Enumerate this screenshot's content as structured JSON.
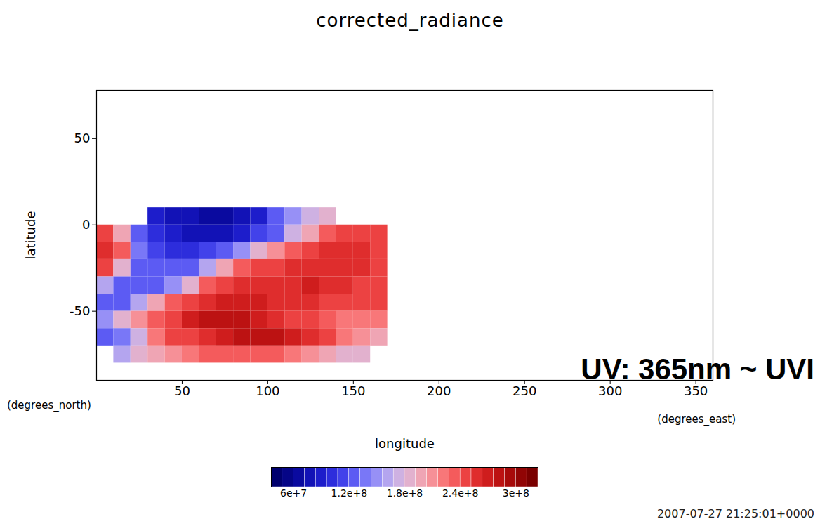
{
  "chart_data": {
    "type": "heatmap",
    "title": "corrected_radiance",
    "x_label": "longitude",
    "y_label": "latitude",
    "x_unit_label": "(degrees_east)",
    "y_unit_label": "(degrees_north)",
    "annotation": "UV: 365nm ~ UVI",
    "timestamp": "2007-07-27 21:25:01+0000",
    "xlim": [
      0,
      360
    ],
    "ylim": [
      -90,
      78
    ],
    "xticks": [
      50,
      100,
      150,
      200,
      250,
      300,
      350
    ],
    "yticks": [
      -50,
      0,
      50
    ],
    "cells": {
      "lon": [
        0,
        10,
        20,
        30,
        40,
        50,
        60,
        70,
        80,
        90,
        100,
        110,
        120,
        130,
        140,
        150,
        160
      ],
      "lat": [
        0,
        -10,
        -20,
        -30,
        -40,
        -50,
        -60,
        -70,
        -80
      ],
      "values": [
        [
          null,
          null,
          null,
          90000000.0,
          80000000.0,
          75000000.0,
          70000000.0,
          70000000.0,
          75000000.0,
          90000000.0,
          120000000.0,
          150000000.0,
          170000000.0,
          190000000.0,
          null,
          null,
          null
        ],
        [
          250000000.0,
          200000000.0,
          130000000.0,
          100000000.0,
          90000000.0,
          80000000.0,
          75000000.0,
          80000000.0,
          90000000.0,
          110000000.0,
          130000000.0,
          170000000.0,
          200000000.0,
          230000000.0,
          240000000.0,
          250000000.0,
          240000000.0
        ],
        [
          260000000.0,
          230000000.0,
          140000000.0,
          110000000.0,
          100000000.0,
          100000000.0,
          110000000.0,
          130000000.0,
          150000000.0,
          180000000.0,
          210000000.0,
          230000000.0,
          250000000.0,
          260000000.0,
          260000000.0,
          260000000.0,
          250000000.0
        ],
        [
          240000000.0,
          190000000.0,
          130000000.0,
          120000000.0,
          120000000.0,
          130000000.0,
          160000000.0,
          200000000.0,
          230000000.0,
          240000000.0,
          250000000.0,
          260000000.0,
          260000000.0,
          260000000.0,
          260000000.0,
          260000000.0,
          250000000.0
        ],
        [
          160000000.0,
          130000000.0,
          120000000.0,
          130000000.0,
          150000000.0,
          190000000.0,
          230000000.0,
          250000000.0,
          260000000.0,
          260000000.0,
          260000000.0,
          260000000.0,
          270000000.0,
          260000000.0,
          260000000.0,
          250000000.0,
          250000000.0
        ],
        [
          120000000.0,
          130000000.0,
          160000000.0,
          200000000.0,
          230000000.0,
          250000000.0,
          260000000.0,
          270000000.0,
          270000000.0,
          270000000.0,
          260000000.0,
          260000000.0,
          260000000.0,
          250000000.0,
          250000000.0,
          240000000.0,
          240000000.0
        ],
        [
          150000000.0,
          190000000.0,
          210000000.0,
          230000000.0,
          250000000.0,
          270000000.0,
          280000000.0,
          280000000.0,
          280000000.0,
          270000000.0,
          260000000.0,
          250000000.0,
          240000000.0,
          230000000.0,
          220000000.0,
          220000000.0,
          220000000.0
        ],
        [
          120000000.0,
          140000000.0,
          170000000.0,
          220000000.0,
          240000000.0,
          250000000.0,
          260000000.0,
          270000000.0,
          280000000.0,
          280000000.0,
          280000000.0,
          270000000.0,
          260000000.0,
          240000000.0,
          220000000.0,
          210000000.0,
          200000000.0
        ],
        [
          null,
          160000000.0,
          180000000.0,
          200000000.0,
          210000000.0,
          220000000.0,
          230000000.0,
          230000000.0,
          230000000.0,
          230000000.0,
          230000000.0,
          220000000.0,
          210000000.0,
          200000000.0,
          190000000.0,
          180000000.0,
          null
        ]
      ]
    },
    "colorbar": {
      "range": [
        36000000.0,
        324000000.0
      ],
      "levels": 24,
      "ticks": [
        {
          "value": 60000000,
          "label": "6e+7"
        },
        {
          "value": 120000000,
          "label": "1.2e+8"
        },
        {
          "value": 180000000,
          "label": "1.8e+8"
        },
        {
          "value": 240000000,
          "label": "2.4e+8"
        },
        {
          "value": 300000000,
          "label": "3e+8"
        }
      ]
    }
  }
}
